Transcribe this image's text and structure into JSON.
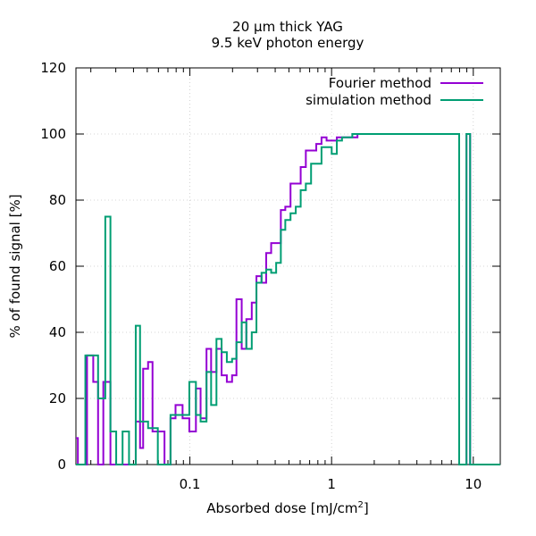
{
  "chart_data": {
    "type": "line",
    "step": true,
    "title": [
      "20 µm thick YAG",
      "9.5 keV photon energy"
    ],
    "xlabel": "Absorbed dose [mJ/cm",
    "xlabel_sup": "2",
    "xlabel_end": "]",
    "ylabel": "% of found signal [%]",
    "xscale": "log",
    "xlim": [
      0.0157,
      15.5
    ],
    "ylim": [
      0,
      120
    ],
    "grid": true,
    "legend_position": "top-right",
    "xticks": [
      0.1,
      1,
      10
    ],
    "xtick_labels": [
      "0.1",
      "1",
      "10"
    ],
    "yticks": [
      0,
      20,
      40,
      60,
      80,
      100,
      120
    ],
    "ytick_labels": [
      "0",
      "20",
      "40",
      "60",
      "80",
      "100",
      "120"
    ],
    "series": [
      {
        "name": "Fourier method",
        "color": "#9400d3",
        "x": [
          0.0157,
          0.0162,
          0.0167,
          0.0188,
          0.0208,
          0.0225,
          0.0245,
          0.0253,
          0.0275,
          0.0302,
          0.0335,
          0.0372,
          0.0415,
          0.0445,
          0.0468,
          0.0507,
          0.0545,
          0.0594,
          0.0662,
          0.073,
          0.0792,
          0.0888,
          0.0991,
          0.1103,
          0.119,
          0.131,
          0.1412,
          0.154,
          0.1674,
          0.1823,
          0.1985,
          0.2131,
          0.2321,
          0.2503,
          0.2733,
          0.2949,
          0.3204,
          0.3455,
          0.3746,
          0.4063,
          0.4383,
          0.4713,
          0.5131,
          0.5586,
          0.6052,
          0.6579,
          0.7165,
          0.7796,
          0.849,
          0.9216,
          1.0017,
          1.0884,
          1.1846,
          1.2869,
          1.4004,
          1.5232,
          1.6522,
          1.7884,
          7.4,
          7.95,
          8.95,
          9.5,
          10.2,
          15.5
        ],
        "y": [
          8,
          0,
          0,
          33,
          25,
          0,
          25,
          25,
          0,
          0,
          0,
          0,
          13,
          5,
          29,
          31,
          10,
          10,
          0,
          14,
          18,
          14,
          10,
          23,
          14,
          35,
          28,
          35,
          27,
          25,
          27,
          50,
          35,
          44,
          49,
          57,
          55,
          64,
          67,
          67,
          77,
          78,
          85,
          85,
          90,
          95,
          95,
          97,
          99,
          98,
          98,
          99,
          99,
          99,
          99,
          100,
          100,
          100,
          100,
          0,
          100,
          0,
          0,
          0
        ]
      },
      {
        "name": "simulation method",
        "color": "#009e73",
        "x": [
          0.0157,
          0.0167,
          0.0183,
          0.0208,
          0.0225,
          0.0253,
          0.0275,
          0.0302,
          0.0335,
          0.0372,
          0.0415,
          0.0445,
          0.0507,
          0.0594,
          0.0662,
          0.073,
          0.0888,
          0.0991,
          0.1103,
          0.119,
          0.131,
          0.1412,
          0.154,
          0.1674,
          0.1823,
          0.1985,
          0.2131,
          0.2321,
          0.2503,
          0.2733,
          0.2949,
          0.3204,
          0.3455,
          0.3746,
          0.4063,
          0.4383,
          0.4713,
          0.5131,
          0.5586,
          0.6052,
          0.6579,
          0.7165,
          0.7796,
          0.849,
          0.9216,
          1.0017,
          1.0884,
          1.1846,
          1.2869,
          1.4004,
          1.5232,
          1.6522,
          1.7884,
          7.4,
          7.95,
          8.95,
          9.5,
          10.2,
          15.5
        ],
        "y": [
          0,
          0,
          33,
          33,
          20,
          75,
          10,
          0,
          10,
          0,
          42,
          13,
          11,
          0,
          0,
          15,
          15,
          25,
          15,
          13,
          28,
          18,
          38,
          34,
          31,
          32,
          37,
          43,
          35,
          40,
          55,
          58,
          59,
          58,
          61,
          71,
          74,
          76,
          78,
          83,
          85,
          91,
          91,
          96,
          96,
          94,
          98,
          99,
          99,
          100,
          100,
          100,
          100,
          100,
          0,
          100,
          0,
          0,
          0
        ]
      }
    ]
  }
}
